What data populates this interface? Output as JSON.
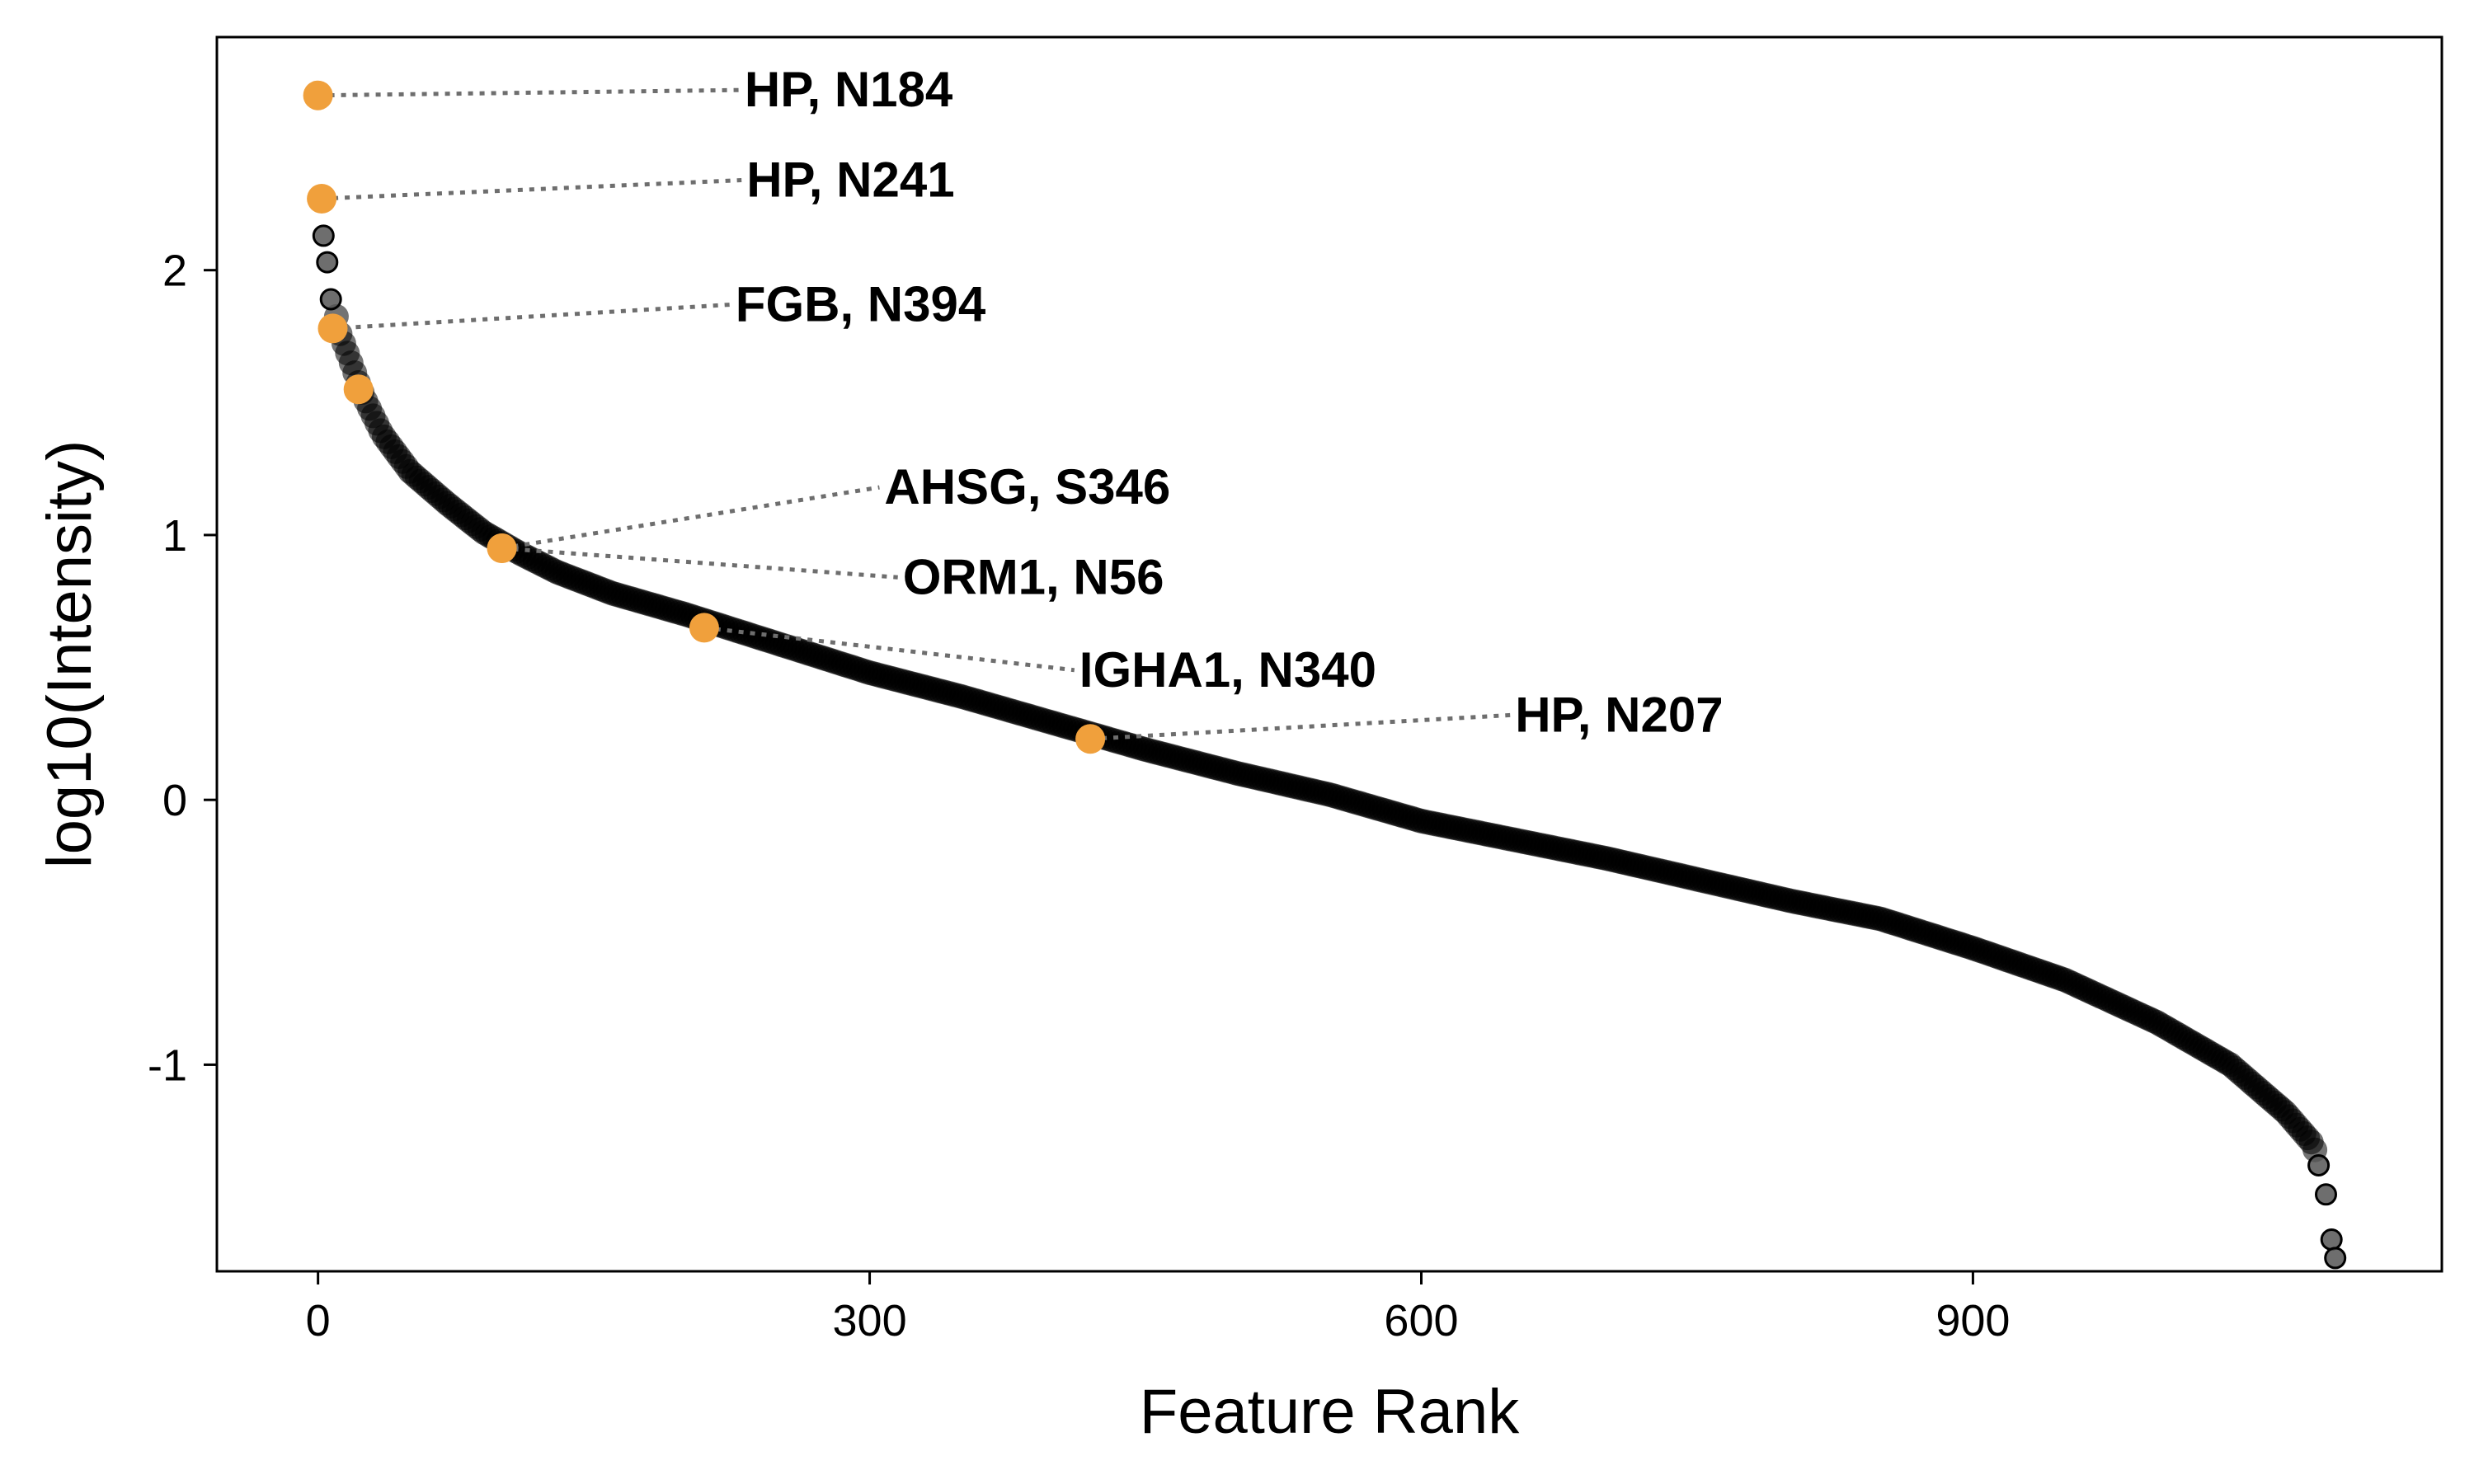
{
  "chart_data": {
    "type": "scatter",
    "title": "",
    "xlabel": "Feature Rank",
    "ylabel": "log10(Intensity)",
    "xlim": [
      -55,
      1155
    ],
    "ylim": [
      -1.78,
      2.88
    ],
    "xticks": [
      0,
      300,
      600,
      900
    ],
    "yticks": [
      -1,
      0,
      1,
      2
    ],
    "grid": false,
    "legend": "none",
    "colors": {
      "background_points": "#000000",
      "highlight_points": "#F0A03C",
      "leader_lines": "#6E6E6E"
    },
    "background_curve": [
      [
        0,
        2.67
      ],
      [
        1,
        2.27
      ],
      [
        2,
        2.13
      ],
      [
        5,
        2.03
      ],
      [
        8,
        1.89
      ],
      [
        12,
        1.76
      ],
      [
        18,
        1.65
      ],
      [
        25,
        1.52
      ],
      [
        35,
        1.38
      ],
      [
        50,
        1.24
      ],
      [
        70,
        1.12
      ],
      [
        90,
        1.01
      ],
      [
        110,
        0.93
      ],
      [
        130,
        0.86
      ],
      [
        160,
        0.78
      ],
      [
        200,
        0.7
      ],
      [
        250,
        0.59
      ],
      [
        300,
        0.48
      ],
      [
        350,
        0.39
      ],
      [
        400,
        0.29
      ],
      [
        450,
        0.19
      ],
      [
        500,
        0.1
      ],
      [
        550,
        0.02
      ],
      [
        600,
        -0.08
      ],
      [
        650,
        -0.15
      ],
      [
        700,
        -0.22
      ],
      [
        750,
        -0.3
      ],
      [
        800,
        -0.38
      ],
      [
        850,
        -0.45
      ],
      [
        900,
        -0.56
      ],
      [
        950,
        -0.68
      ],
      [
        1000,
        -0.84
      ],
      [
        1040,
        -1.0
      ],
      [
        1070,
        -1.18
      ],
      [
        1085,
        -1.3
      ],
      [
        1092,
        -1.45
      ],
      [
        1096,
        -1.65
      ],
      [
        1099,
        -1.78
      ]
    ],
    "outliers": [
      [
        3,
        2.13
      ],
      [
        5,
        2.03
      ],
      [
        7,
        1.89
      ],
      [
        1088,
        -1.38
      ],
      [
        1092,
        -1.49
      ],
      [
        1095,
        -1.66
      ],
      [
        1097,
        -1.73
      ]
    ],
    "highlighted": [
      {
        "label": "HP, N184",
        "x": 0,
        "y": 2.66,
        "label_x": 232,
        "label_y": 2.68
      },
      {
        "label": "HP, N241",
        "x": 2,
        "y": 2.27,
        "label_x": 233,
        "label_y": 2.34
      },
      {
        "label": "FGB, N394",
        "x": 8,
        "y": 1.78,
        "label_x": 227,
        "label_y": 1.87
      },
      {
        "label": "",
        "x": 22,
        "y": 1.55
      },
      {
        "label": "AHSG, S346",
        "x": 100,
        "y": 0.95,
        "label_x": 308,
        "label_y": 1.18
      },
      {
        "label": "ORM1, N56",
        "x": 100,
        "y": 0.95,
        "label_x": 318,
        "label_y": 0.84
      },
      {
        "label": "IGHA1, N340",
        "x": 210,
        "y": 0.65,
        "label_x": 414,
        "label_y": 0.49
      },
      {
        "label": "HP, N207",
        "x": 420,
        "y": 0.23,
        "label_x": 651,
        "label_y": 0.32
      }
    ]
  }
}
